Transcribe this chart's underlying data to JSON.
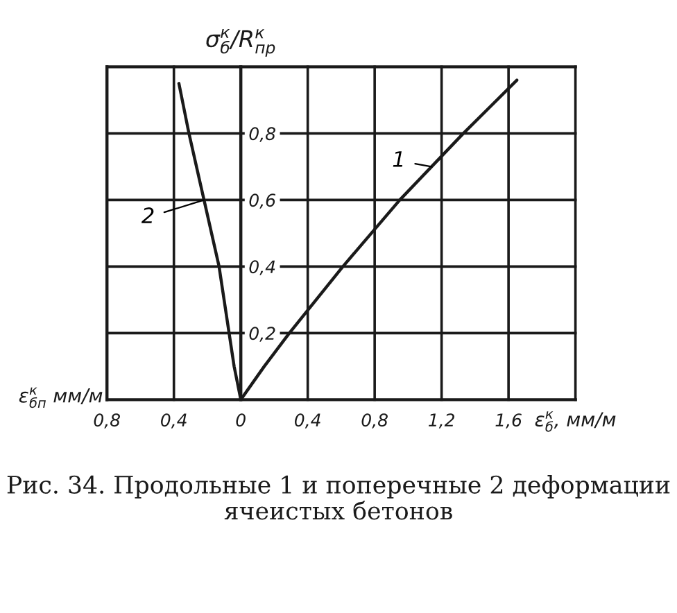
{
  "chart_data": {
    "type": "line",
    "ylabel": "σ$^{к}$$_{б}$/R$^{к}$$_{пр}$",
    "xlabel": "ε$^{к}$$_{б}$, мм/м",
    "annotations": [
      "ε$^{к}$$_{бп}$ мм/м",
      "Рис. 34. Продольные 1 и поперечные 2 деформации ячеистых бетонов"
    ],
    "series": [
      {
        "name": "1",
        "color": "#1a1a1a",
        "x": [
          0,
          0.14,
          0.29,
          0.45,
          0.61,
          0.78,
          0.95,
          1.14,
          1.33,
          1.49,
          1.65
        ],
        "values": [
          0,
          0.1,
          0.2,
          0.3,
          0.4,
          0.5,
          0.6,
          0.7,
          0.8,
          0.88,
          0.96
        ]
      },
      {
        "name": "2",
        "color": "#1a1a1a",
        "x": [
          0,
          -0.04,
          -0.07,
          -0.13,
          -0.22,
          -0.31,
          -0.37
        ],
        "values": [
          0,
          0.1,
          0.2,
          0.4,
          0.6,
          0.8,
          0.95
        ]
      }
    ],
    "xlim": [
      -0.8,
      2.0
    ],
    "ylim": [
      0,
      1.0
    ],
    "xticks": [
      {
        "value": -0.8,
        "label": "0,8"
      },
      {
        "value": -0.4,
        "label": "0,4"
      },
      0,
      {
        "value": 0.4,
        "label": "0,4"
      },
      {
        "value": 0.8,
        "label": "0,8"
      },
      {
        "value": 1.2,
        "label": "1,2"
      },
      {
        "value": 1.6,
        "label": "1,6"
      },
      {
        "value": 2.0,
        "label": null
      }
    ],
    "yticks": [
      {
        "value": 0.2,
        "label": "0,2"
      },
      {
        "value": 0.4,
        "label": "0,4"
      },
      {
        "value": 0.6,
        "label": "0,6"
      },
      {
        "value": 0.8,
        "label": "0,8"
      }
    ],
    "grid": true,
    "marker": "none",
    "line_style": "solid"
  }
}
